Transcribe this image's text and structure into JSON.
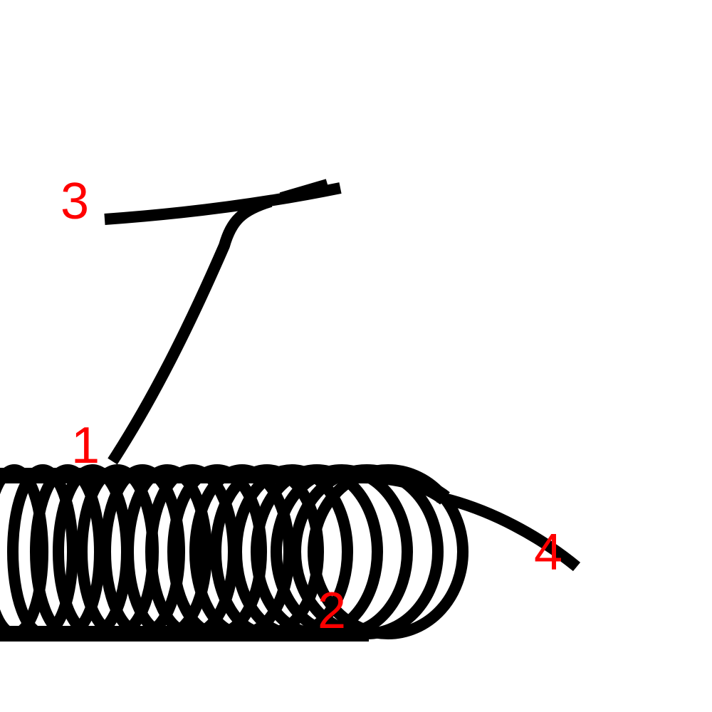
{
  "diagram": {
    "title": "",
    "colors": {
      "background": "#ffffff",
      "wire": "#000000",
      "labels": "#ff0000"
    },
    "components": [
      {
        "name": "coil-spring",
        "icon": "coil-spring-icon"
      },
      {
        "name": "lead-wire-1-to-3",
        "icon": "wire-icon"
      },
      {
        "name": "crossbar-wire-3",
        "icon": "wire-icon"
      },
      {
        "name": "lead-wire-4",
        "icon": "wire-icon"
      }
    ],
    "labels": {
      "one": "1",
      "two": "2",
      "three": "3",
      "four": "4"
    }
  }
}
